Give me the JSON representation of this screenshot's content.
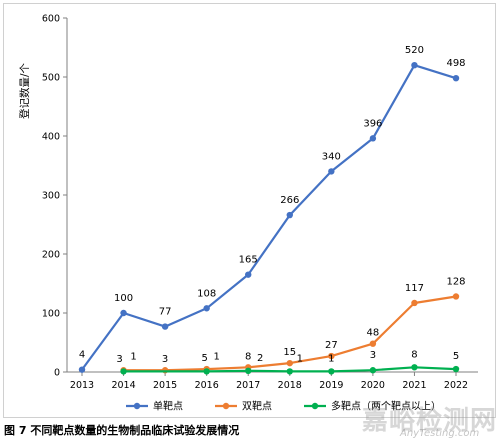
{
  "chart_data": {
    "type": "line",
    "ylabel": "登记数量/个",
    "ylim": [
      0,
      600
    ],
    "yticks": [
      0,
      100,
      200,
      300,
      400,
      500,
      600
    ],
    "categories": [
      "2013",
      "2014",
      "2015",
      "2016",
      "2017",
      "2018",
      "2019",
      "2020",
      "2021",
      "2022"
    ],
    "legend_position": "bottom",
    "grid": false,
    "series": [
      {
        "name": "单靶点",
        "color": "#4472c4",
        "values": [
          4,
          100,
          77,
          108,
          165,
          266,
          340,
          396,
          520,
          498
        ]
      },
      {
        "name": "双靶点",
        "color": "#ed7d31",
        "values": [
          null,
          3,
          3,
          5,
          8,
          15,
          27,
          48,
          117,
          128
        ]
      },
      {
        "name": "多靶点（两个靶点以上）",
        "color": "#00b050",
        "values": [
          null,
          1,
          null,
          1,
          2,
          1,
          1,
          3,
          8,
          5
        ]
      }
    ]
  },
  "caption": "图 7 不同靶点数量的生物制品临床试验发展情况",
  "watermark": {
    "text": "嘉峪检测网",
    "sub": "AnyTesting.com"
  }
}
